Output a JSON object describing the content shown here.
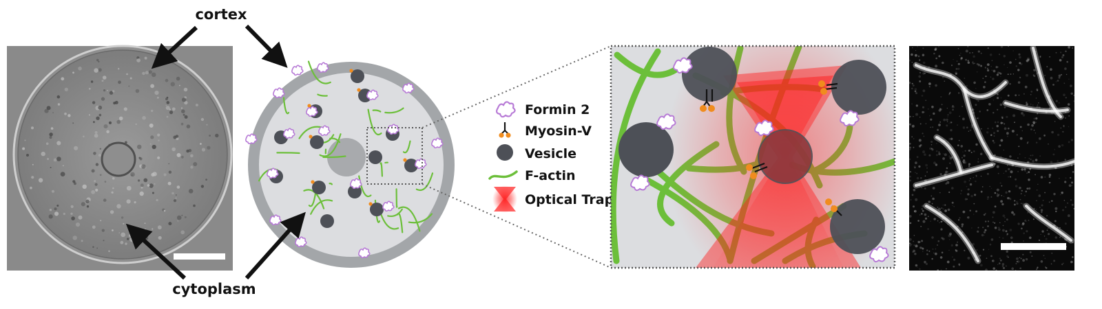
{
  "labels": {
    "cortex": "cortex",
    "cytoplasm": "cytoplasm"
  },
  "legend": [
    {
      "label": "Formin 2",
      "icon": "formin-icon"
    },
    {
      "label": "Myosin-V",
      "icon": "myosin-icon"
    },
    {
      "label": "Vesicle",
      "icon": "vesicle-icon"
    },
    {
      "label": "F-actin",
      "icon": "f-actin-icon"
    },
    {
      "label": "Optical Trap",
      "icon": "optical-trap-icon"
    }
  ],
  "colors": {
    "actin": "#6cbf3a",
    "formin": "#b77ad6",
    "myosin_head": "#f08c1e",
    "vesicle": "#4d5057",
    "cytoplasm": "#dcdde0",
    "cortex": "#a3a6a9",
    "trap": "#ff2a2a"
  }
}
